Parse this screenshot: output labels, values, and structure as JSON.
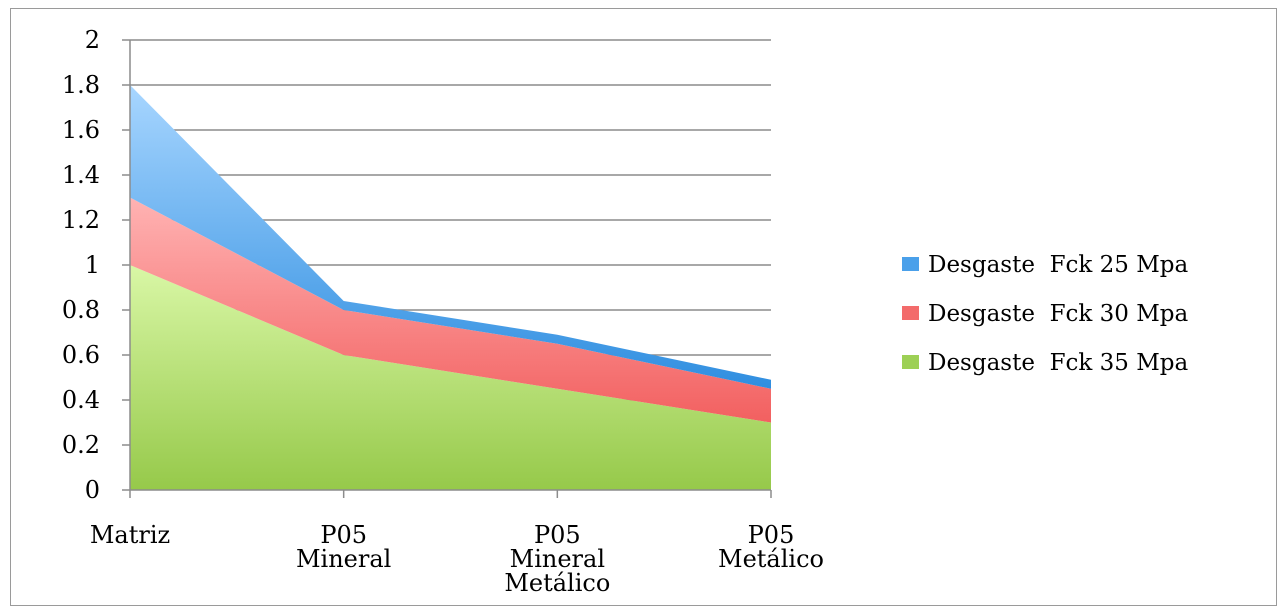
{
  "chart_data": {
    "type": "area",
    "stacked": true,
    "categories": [
      [
        "Matriz"
      ],
      [
        "P05",
        "Mineral"
      ],
      [
        "P05",
        "Mineral",
        "Metálico"
      ],
      [
        "P05",
        "Metálico"
      ]
    ],
    "series": [
      {
        "name": "Desgaste  Fck 35 Mpa",
        "values": [
          1.0,
          0.6,
          0.45,
          0.3
        ],
        "color": "#9bd050"
      },
      {
        "name": "Desgaste  Fck 30 Mpa",
        "values": [
          0.3,
          0.2,
          0.2,
          0.15
        ],
        "color": "#f26d6d"
      },
      {
        "name": "Desgaste  Fck 25 Mpa",
        "values": [
          0.5,
          0.04,
          0.04,
          0.04
        ],
        "color": "#3f9be6"
      }
    ],
    "legend_order": [
      2,
      1,
      0
    ],
    "ylim": [
      0,
      2
    ],
    "yticks": [
      "0",
      "0.2",
      "0.4",
      "0.6",
      "0.8",
      "1",
      "1.2",
      "1.4",
      "1.6",
      "1.8",
      "2"
    ],
    "legend_position": "right",
    "grid": true
  }
}
